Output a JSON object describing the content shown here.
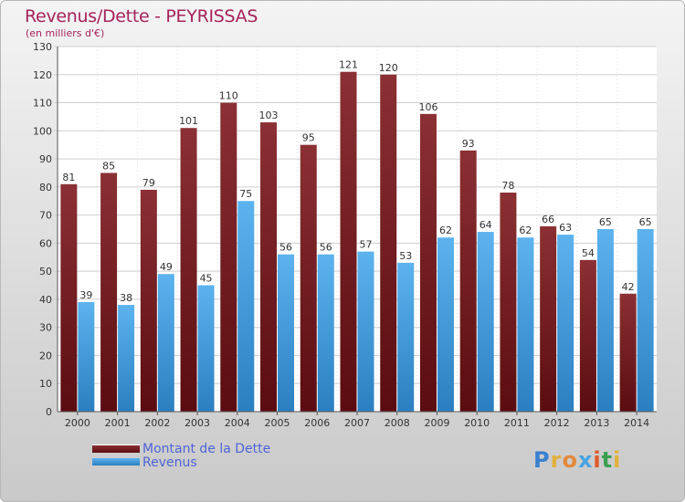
{
  "chart_data": {
    "type": "bar",
    "title": "Revenus/Dette - PEYRISSAS",
    "subtitle": "(en milliers d'€)",
    "categories": [
      "2000",
      "2001",
      "2002",
      "2003",
      "2004",
      "2005",
      "2006",
      "2007",
      "2008",
      "2009",
      "2010",
      "2011",
      "2012",
      "2013",
      "2014"
    ],
    "series": [
      {
        "name": "Montant de la Dette",
        "color": "#7a1f22",
        "values": [
          81,
          85,
          79,
          101,
          110,
          103,
          95,
          121,
          120,
          106,
          93,
          78,
          66,
          54,
          42
        ]
      },
      {
        "name": "Revenus",
        "color": "#4aa3e2",
        "values": [
          39,
          38,
          49,
          45,
          75,
          56,
          56,
          57,
          53,
          62,
          64,
          62,
          63,
          65,
          65
        ]
      }
    ],
    "ylim": [
      0,
      130
    ],
    "yticks": [
      0,
      10,
      20,
      30,
      40,
      50,
      60,
      70,
      80,
      90,
      100,
      110,
      120,
      130
    ],
    "grid": true,
    "legend": "bottom-left"
  },
  "logo": {
    "text": "Proxiti",
    "letters": [
      "P",
      "r",
      "o",
      "x",
      "i",
      "t",
      "i"
    ],
    "colors": [
      "#3a7fd0",
      "#e2b13c",
      "#e2893c",
      "#4aa3e2",
      "#e05a2a",
      "#3aa050",
      "#e2b13c"
    ]
  }
}
